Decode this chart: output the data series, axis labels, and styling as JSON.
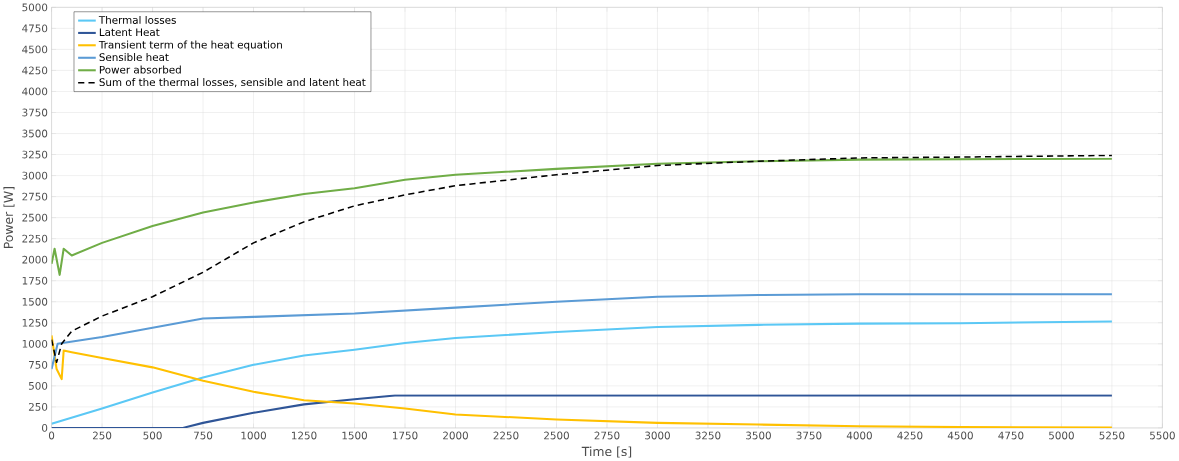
{
  "chart_data": {
    "type": "line",
    "xlabel": "Time [s]",
    "ylabel": "Power [W]",
    "xlim": [
      0,
      5500
    ],
    "xticks": [
      0,
      250,
      500,
      750,
      1000,
      1250,
      1500,
      1750,
      2000,
      2250,
      2500,
      2750,
      3000,
      3250,
      3500,
      3750,
      4000,
      4250,
      4500,
      4750,
      5000,
      5250,
      5500
    ],
    "ylim": [
      0,
      5000
    ],
    "yticks": [
      0,
      250,
      500,
      750,
      1000,
      1250,
      1500,
      1750,
      2000,
      2250,
      2500,
      2750,
      3000,
      3250,
      3500,
      3750,
      4000,
      4250,
      4500,
      4750,
      5000
    ],
    "grid": true,
    "legend": "top left",
    "marker": "none",
    "series": [
      {
        "name": "Thermal losses",
        "color": "#5bc8f5",
        "line_style": "solid",
        "x": [
          0,
          250,
          500,
          750,
          1000,
          1250,
          1500,
          1750,
          2000,
          2500,
          3000,
          3500,
          4000,
          4500,
          5250
        ],
        "values": [
          50,
          230,
          420,
          600,
          750,
          860,
          930,
          1010,
          1070,
          1140,
          1200,
          1225,
          1240,
          1245,
          1265
        ]
      },
      {
        "name": "Latent Heat",
        "color": "#2f5597",
        "line_style": "solid",
        "x": [
          0,
          650,
          750,
          1000,
          1250,
          1500,
          1700,
          2500,
          3500,
          4500,
          5250
        ],
        "values": [
          0,
          0,
          60,
          180,
          280,
          340,
          385,
          385,
          385,
          385,
          385
        ]
      },
      {
        "name": "Transient term of the heat equation",
        "color": "#ffc000",
        "line_style": "solid",
        "x": [
          0,
          25,
          50,
          60,
          100,
          250,
          500,
          750,
          1000,
          1250,
          1500,
          1750,
          2000,
          2500,
          3000,
          3500,
          4000,
          4500,
          5250
        ],
        "values": [
          1100,
          700,
          580,
          920,
          900,
          830,
          720,
          560,
          430,
          330,
          290,
          230,
          160,
          100,
          60,
          40,
          20,
          10,
          5
        ]
      },
      {
        "name": "Sensible heat",
        "color": "#5b9bd5",
        "line_style": "solid",
        "x": [
          0,
          30,
          250,
          500,
          750,
          1000,
          1500,
          2000,
          2500,
          3000,
          3500,
          4000,
          5250
        ],
        "values": [
          700,
          1000,
          1080,
          1190,
          1300,
          1320,
          1360,
          1430,
          1500,
          1560,
          1580,
          1590,
          1590
        ]
      },
      {
        "name": "Power absorbed",
        "color": "#70ad47",
        "line_style": "solid",
        "x": [
          0,
          15,
          40,
          60,
          100,
          250,
          500,
          750,
          1000,
          1250,
          1500,
          1750,
          2000,
          2500,
          3000,
          3500,
          4000,
          5250
        ],
        "values": [
          1950,
          2130,
          1820,
          2130,
          2050,
          2200,
          2400,
          2560,
          2680,
          2780,
          2850,
          2950,
          3010,
          3080,
          3140,
          3170,
          3190,
          3200
        ]
      },
      {
        "name": "Sum of the thermal losses, sensible and latent heat",
        "color": "#000000",
        "line_style": "dashed",
        "x": [
          0,
          25,
          50,
          100,
          250,
          500,
          750,
          1000,
          1250,
          1500,
          1750,
          2000,
          2500,
          3000,
          3500,
          4000,
          4500,
          5250
        ],
        "values": [
          1050,
          780,
          1000,
          1150,
          1330,
          1560,
          1850,
          2200,
          2450,
          2640,
          2770,
          2880,
          3010,
          3120,
          3170,
          3210,
          3220,
          3240
        ]
      }
    ]
  }
}
